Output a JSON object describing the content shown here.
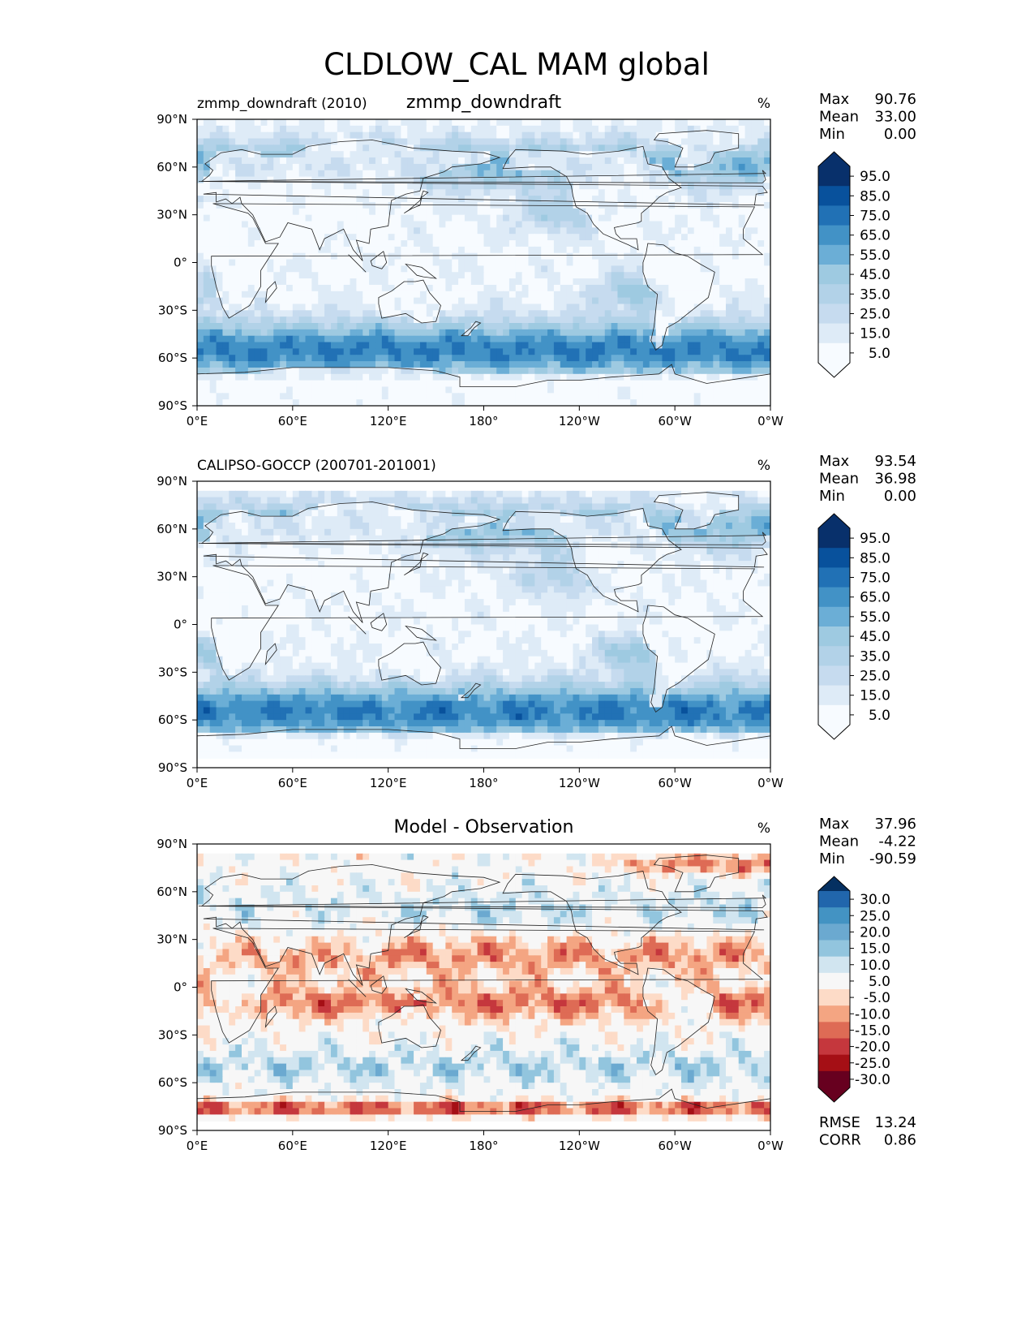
{
  "figure_title": "CLDLOW_CAL MAM global",
  "colors": {
    "land": "#f2f6fb",
    "sequential": [
      "#f7fbff",
      "#deebf7",
      "#c6dbef",
      "#b2d2e8",
      "#9ecae1",
      "#6baed6",
      "#4292c6",
      "#2171b5",
      "#08519c",
      "#08306b"
    ],
    "diverging": [
      "#67001f",
      "#a50f15",
      "#c5373d",
      "#de6b55",
      "#f4a582",
      "#fddbc7",
      "#f7f7f7",
      "#d1e5f0",
      "#92c5de",
      "#6ba9d0",
      "#4393c3",
      "#2166ac",
      "#053061"
    ]
  },
  "chart_data": [
    {
      "type": "heatmap",
      "left_title": "zmmp_downdraft (2010)",
      "center_title": "zmmp_downdraft",
      "units": "%",
      "xticks": [
        "0°E",
        "60°E",
        "120°E",
        "180°",
        "120°W",
        "60°W",
        "0°W"
      ],
      "yticks": [
        "90°N",
        "60°N",
        "30°N",
        "0°",
        "30°S",
        "60°S",
        "90°S"
      ],
      "xlim": [
        0,
        360
      ],
      "ylim": [
        -90,
        90
      ],
      "data_lat_range": [
        -90,
        90
      ],
      "stats": [
        {
          "label": "Max",
          "value": "90.76"
        },
        {
          "label": "Mean",
          "value": "33.00"
        },
        {
          "label": "Min",
          "value": "0.00"
        }
      ],
      "colorbar": {
        "levels": [
          "95.0",
          "85.0",
          "75.0",
          "65.0",
          "55.0",
          "45.0",
          "35.0",
          "25.0",
          "15.0",
          "5.0"
        ],
        "extend": "both",
        "palette": "sequential"
      },
      "field": "model"
    },
    {
      "type": "heatmap",
      "left_title": "CALIPSO-GOCCP (200701-201001)",
      "center_title": "",
      "units": "%",
      "xticks": [
        "0°E",
        "60°E",
        "120°E",
        "180°",
        "120°W",
        "60°W",
        "0°W"
      ],
      "yticks": [
        "90°N",
        "60°N",
        "30°N",
        "0°",
        "30°S",
        "60°S",
        "90°S"
      ],
      "xlim": [
        0,
        360
      ],
      "ylim": [
        -90,
        90
      ],
      "data_lat_range": [
        -84,
        84
      ],
      "stats": [
        {
          "label": "Max",
          "value": "93.54"
        },
        {
          "label": "Mean",
          "value": "36.98"
        },
        {
          "label": "Min",
          "value": "0.00"
        }
      ],
      "colorbar": {
        "levels": [
          "95.0",
          "85.0",
          "75.0",
          "65.0",
          "55.0",
          "45.0",
          "35.0",
          "25.0",
          "15.0",
          "5.0"
        ],
        "extend": "both",
        "palette": "sequential"
      },
      "field": "obs"
    },
    {
      "type": "heatmap",
      "left_title": "",
      "center_title": "Model - Observation",
      "units": "%",
      "xticks": [
        "0°E",
        "60°E",
        "120°E",
        "180°",
        "120°W",
        "60°W",
        "0°W"
      ],
      "yticks": [
        "90°N",
        "60°N",
        "30°N",
        "0°",
        "30°S",
        "60°S",
        "90°S"
      ],
      "xlim": [
        0,
        360
      ],
      "ylim": [
        -90,
        90
      ],
      "data_lat_range": [
        -84,
        84
      ],
      "stats": [
        {
          "label": "Max",
          "value": "37.96"
        },
        {
          "label": "Mean",
          "value": "-4.22"
        },
        {
          "label": "Min",
          "value": "-90.59"
        }
      ],
      "colorbar": {
        "levels": [
          "30.0",
          "25.0",
          "20.0",
          "15.0",
          "10.0",
          "5.0",
          "-5.0",
          "-10.0",
          "-15.0",
          "-20.0",
          "-25.0",
          "-30.0"
        ],
        "extend": "both",
        "palette": "diverging"
      },
      "metrics": [
        {
          "label": "RMSE",
          "value": "13.24"
        },
        {
          "label": "CORR",
          "value": "0.86"
        }
      ],
      "field": "diff"
    }
  ]
}
